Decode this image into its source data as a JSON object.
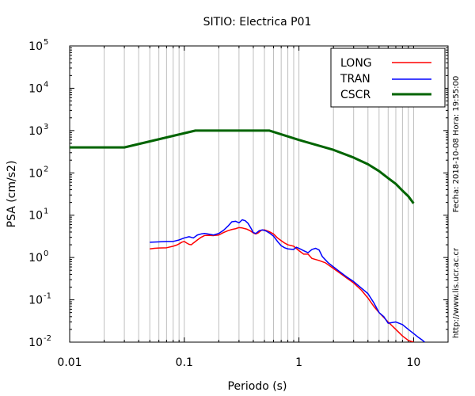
{
  "chart_data": {
    "type": "line",
    "title": "SITIO: Electrica P01",
    "xlabel": "Periodo (s)",
    "ylabel": "PSA (cm/s2)",
    "x_scale": "log",
    "y_scale": "log",
    "xlim": [
      0.01,
      20
    ],
    "ylim": [
      0.01,
      100000
    ],
    "x_ticks": [
      {
        "value": 0.01,
        "label": "0.01"
      },
      {
        "value": 0.1,
        "label": "0.1"
      },
      {
        "value": 1,
        "label": "1"
      },
      {
        "value": 10,
        "label": "10"
      }
    ],
    "y_ticks": [
      {
        "value": 0.01,
        "base": "10",
        "exp": "-2"
      },
      {
        "value": 0.1,
        "base": "10",
        "exp": "-1"
      },
      {
        "value": 1,
        "base": "10",
        "exp": "0"
      },
      {
        "value": 10,
        "base": "10",
        "exp": "1"
      },
      {
        "value": 100,
        "base": "10",
        "exp": "2"
      },
      {
        "value": 1000,
        "base": "10",
        "exp": "3"
      },
      {
        "value": 10000,
        "base": "10",
        "exp": "4"
      },
      {
        "value": 100000,
        "base": "10",
        "exp": "5"
      }
    ],
    "grid": "vertical-minor",
    "legend_position": "top-right",
    "side_notes": {
      "timestamp": "Fecha: 2018-10-08 Hora: 19:55:00",
      "url": "http://www.lis.ucr.ac.cr"
    },
    "series": [
      {
        "name": "LONG",
        "color": "#ff0000",
        "width": 1.5,
        "points": [
          [
            0.05,
            1.6
          ],
          [
            0.055,
            1.65
          ],
          [
            0.06,
            1.68
          ],
          [
            0.07,
            1.7
          ],
          [
            0.08,
            1.85
          ],
          [
            0.085,
            1.95
          ],
          [
            0.09,
            2.1
          ],
          [
            0.095,
            2.3
          ],
          [
            0.1,
            2.4
          ],
          [
            0.105,
            2.2
          ],
          [
            0.11,
            2.05
          ],
          [
            0.115,
            2.0
          ],
          [
            0.12,
            2.2
          ],
          [
            0.13,
            2.6
          ],
          [
            0.14,
            3.0
          ],
          [
            0.15,
            3.3
          ],
          [
            0.16,
            3.35
          ],
          [
            0.18,
            3.3
          ],
          [
            0.2,
            3.4
          ],
          [
            0.22,
            3.9
          ],
          [
            0.24,
            4.3
          ],
          [
            0.26,
            4.6
          ],
          [
            0.28,
            4.8
          ],
          [
            0.3,
            5.1
          ],
          [
            0.32,
            5.0
          ],
          [
            0.35,
            4.7
          ],
          [
            0.38,
            4.2
          ],
          [
            0.4,
            3.8
          ],
          [
            0.42,
            3.6
          ],
          [
            0.44,
            3.8
          ],
          [
            0.47,
            4.4
          ],
          [
            0.5,
            4.5
          ],
          [
            0.55,
            4.1
          ],
          [
            0.6,
            3.6
          ],
          [
            0.65,
            2.9
          ],
          [
            0.7,
            2.5
          ],
          [
            0.75,
            2.2
          ],
          [
            0.8,
            2.0
          ],
          [
            0.9,
            1.85
          ],
          [
            1.0,
            1.45
          ],
          [
            1.1,
            1.2
          ],
          [
            1.2,
            1.2
          ],
          [
            1.3,
            0.95
          ],
          [
            1.5,
            0.85
          ],
          [
            1.7,
            0.75
          ],
          [
            2.0,
            0.55
          ],
          [
            2.3,
            0.42
          ],
          [
            2.6,
            0.33
          ],
          [
            3.0,
            0.25
          ],
          [
            3.5,
            0.17
          ],
          [
            4.0,
            0.11
          ],
          [
            4.5,
            0.07
          ],
          [
            5.0,
            0.05
          ],
          [
            6.0,
            0.03
          ],
          [
            7.0,
            0.02
          ],
          [
            8.0,
            0.014
          ],
          [
            9.0,
            0.011
          ],
          [
            10.0,
            0.01
          ]
        ]
      },
      {
        "name": "TRAN",
        "color": "#0000ff",
        "width": 1.5,
        "points": [
          [
            0.05,
            2.3
          ],
          [
            0.06,
            2.35
          ],
          [
            0.07,
            2.4
          ],
          [
            0.08,
            2.4
          ],
          [
            0.09,
            2.6
          ],
          [
            0.1,
            2.9
          ],
          [
            0.11,
            3.1
          ],
          [
            0.12,
            2.9
          ],
          [
            0.13,
            3.4
          ],
          [
            0.14,
            3.6
          ],
          [
            0.15,
            3.7
          ],
          [
            0.16,
            3.6
          ],
          [
            0.18,
            3.4
          ],
          [
            0.2,
            3.7
          ],
          [
            0.22,
            4.4
          ],
          [
            0.24,
            5.5
          ],
          [
            0.26,
            7.0
          ],
          [
            0.28,
            7.2
          ],
          [
            0.3,
            6.6
          ],
          [
            0.32,
            7.8
          ],
          [
            0.34,
            7.4
          ],
          [
            0.36,
            6.4
          ],
          [
            0.38,
            5.0
          ],
          [
            0.4,
            3.9
          ],
          [
            0.42,
            3.7
          ],
          [
            0.45,
            4.3
          ],
          [
            0.48,
            4.5
          ],
          [
            0.52,
            4.2
          ],
          [
            0.56,
            3.7
          ],
          [
            0.6,
            3.2
          ],
          [
            0.65,
            2.4
          ],
          [
            0.7,
            1.9
          ],
          [
            0.75,
            1.7
          ],
          [
            0.8,
            1.6
          ],
          [
            0.9,
            1.55
          ],
          [
            0.95,
            1.75
          ],
          [
            1.0,
            1.65
          ],
          [
            1.1,
            1.45
          ],
          [
            1.2,
            1.3
          ],
          [
            1.3,
            1.55
          ],
          [
            1.4,
            1.65
          ],
          [
            1.5,
            1.5
          ],
          [
            1.6,
            1.05
          ],
          [
            1.8,
            0.75
          ],
          [
            2.0,
            0.6
          ],
          [
            2.3,
            0.45
          ],
          [
            2.6,
            0.35
          ],
          [
            3.0,
            0.27
          ],
          [
            3.5,
            0.19
          ],
          [
            4.0,
            0.14
          ],
          [
            4.5,
            0.085
          ],
          [
            5.0,
            0.05
          ],
          [
            5.5,
            0.04
          ],
          [
            6.0,
            0.028
          ],
          [
            7.0,
            0.03
          ],
          [
            8.0,
            0.026
          ],
          [
            9.0,
            0.02
          ],
          [
            10.0,
            0.016
          ],
          [
            11.0,
            0.013
          ],
          [
            12.0,
            0.011
          ],
          [
            12.5,
            0.01
          ]
        ]
      },
      {
        "name": "CSCR",
        "color": "#006400",
        "width": 3,
        "points": [
          [
            0.01,
            400
          ],
          [
            0.03,
            400
          ],
          [
            0.125,
            1000
          ],
          [
            0.55,
            1000
          ],
          [
            1.0,
            600
          ],
          [
            2.0,
            350
          ],
          [
            3.0,
            230
          ],
          [
            4.0,
            160
          ],
          [
            5.0,
            110
          ],
          [
            6.0,
            75
          ],
          [
            7.0,
            55
          ],
          [
            8.0,
            38
          ],
          [
            9.0,
            28
          ],
          [
            10.0,
            19
          ]
        ]
      }
    ]
  }
}
